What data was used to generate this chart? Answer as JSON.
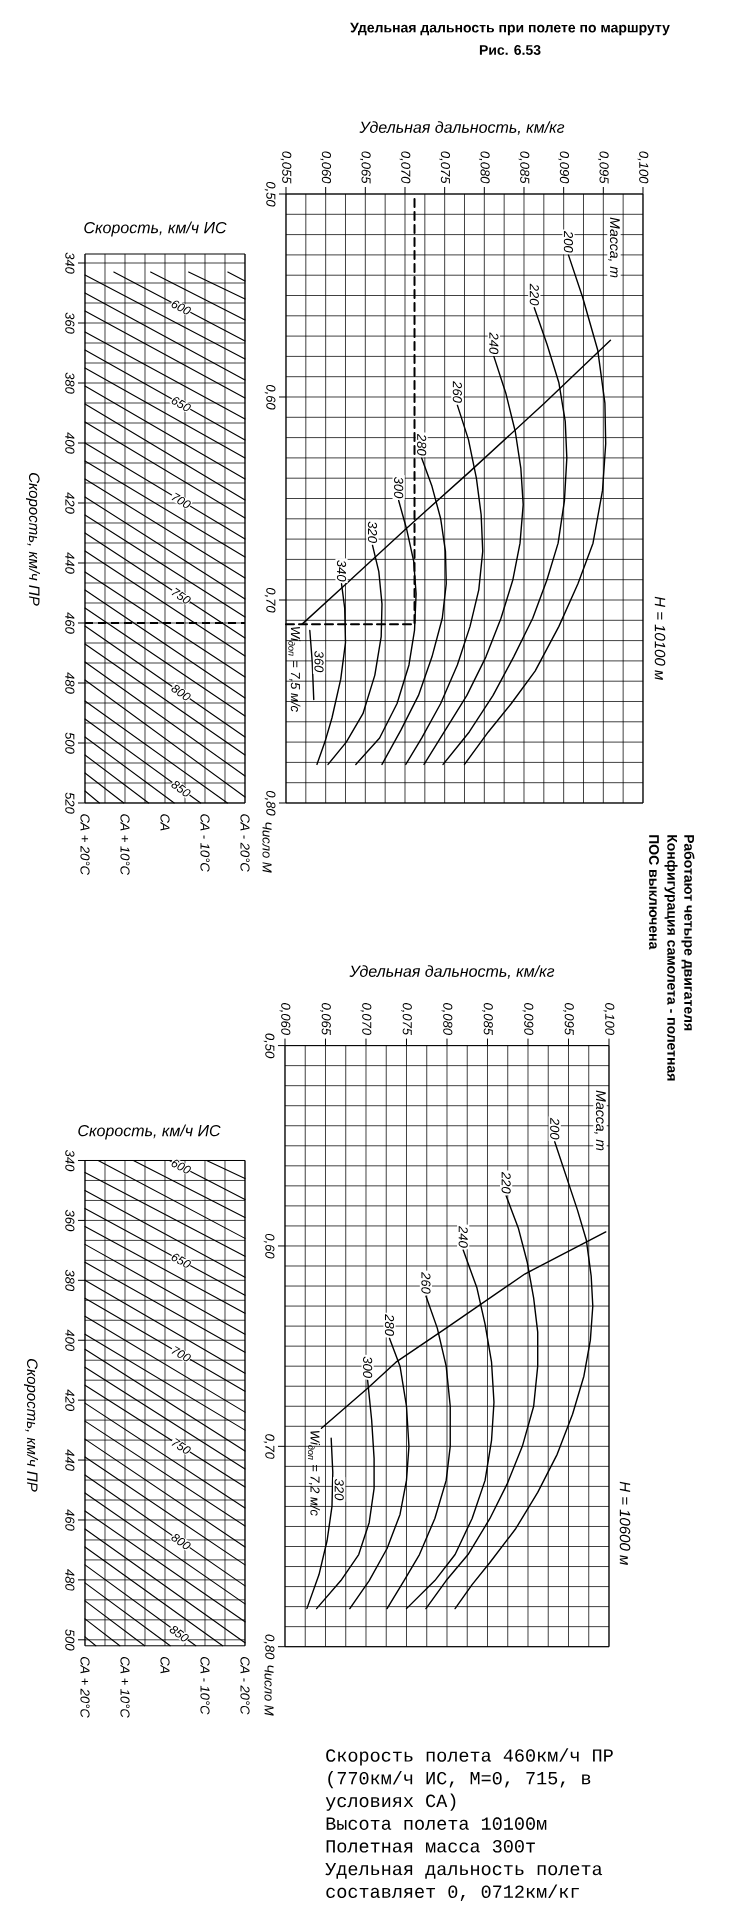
{
  "chart_data": [
    {
      "type": "line",
      "ylabel": "Скорость, км/ч ПР",
      "annotations": [
        "Скорость, км/ч ИС"
      ],
      "xlim": [
        20,
        -20
      ],
      "xticks": [
        {
          "value": 20,
          "label": "СА + 20°C"
        },
        {
          "value": 10,
          "label": "СА + 10°C"
        },
        {
          "value": 0,
          "label": "СА"
        },
        {
          "value": -10,
          "label": "СА - 10°C"
        },
        {
          "value": -20,
          "label": "СА - 20°C"
        }
      ],
      "ylim": [
        520,
        337
      ],
      "yticks": [
        340,
        360,
        380,
        400,
        420,
        440,
        460,
        480,
        500,
        520
      ],
      "grid": true,
      "ref_lines": [
        {
          "axis": "y",
          "value": 460,
          "line_style": "dashed"
        }
      ],
      "series": [
        {
          "color": "#000000",
          "x": [
            -15.7,
            -20
          ],
          "values": [
            343,
            346
          ]
        },
        {
          "color": "#000000",
          "x": [
            -5.9,
            -20
          ],
          "values": [
            343,
            352
          ]
        },
        {
          "color": "#000000",
          "x": [
            3.6,
            -20
          ],
          "values": [
            343,
            359
          ]
        },
        {
          "name": "600",
          "color": "#000000",
          "x": [
            12.8,
            -20
          ],
          "values": [
            343,
            366
          ]
        },
        {
          "color": "#000000",
          "x": [
            20,
            -20
          ],
          "values": [
            344,
            372
          ]
        },
        {
          "color": "#000000",
          "x": [
            20,
            -20
          ],
          "values": [
            350,
            379
          ]
        },
        {
          "color": "#000000",
          "x": [
            20,
            -20
          ],
          "values": [
            356,
            385
          ]
        },
        {
          "color": "#000000",
          "x": [
            20,
            -20
          ],
          "values": [
            363,
            392
          ]
        },
        {
          "name": "650",
          "color": "#000000",
          "x": [
            20,
            -20
          ],
          "values": [
            369,
            399
          ]
        },
        {
          "color": "#000000",
          "x": [
            20,
            -20
          ],
          "values": [
            375,
            405
          ]
        },
        {
          "color": "#000000",
          "x": [
            20,
            -20
          ],
          "values": [
            381,
            412
          ]
        },
        {
          "color": "#000000",
          "x": [
            20,
            -20
          ],
          "values": [
            387,
            419
          ]
        },
        {
          "color": "#000000",
          "x": [
            20,
            -20
          ],
          "values": [
            393,
            425
          ]
        },
        {
          "name": "700",
          "color": "#000000",
          "x": [
            20,
            -20
          ],
          "values": [
            400,
            432
          ]
        },
        {
          "color": "#000000",
          "x": [
            20,
            -20
          ],
          "values": [
            406,
            438
          ]
        },
        {
          "color": "#000000",
          "x": [
            20,
            -20
          ],
          "values": [
            412,
            445
          ]
        },
        {
          "color": "#000000",
          "x": [
            20,
            -20
          ],
          "values": [
            418,
            452
          ]
        },
        {
          "color": "#000000",
          "x": [
            20,
            -20
          ],
          "values": [
            424,
            458
          ]
        },
        {
          "name": "750",
          "color": "#000000",
          "x": [
            20,
            -20
          ],
          "values": [
            430,
            465
          ]
        },
        {
          "color": "#000000",
          "x": [
            20,
            -20
          ],
          "values": [
            436,
            471
          ]
        },
        {
          "color": "#000000",
          "x": [
            20,
            -20
          ],
          "values": [
            443,
            478
          ]
        },
        {
          "color": "#000000",
          "x": [
            20,
            -20
          ],
          "values": [
            449,
            485
          ]
        },
        {
          "color": "#000000",
          "x": [
            20,
            -20
          ],
          "values": [
            455,
            491
          ]
        },
        {
          "name": "800",
          "color": "#000000",
          "x": [
            20,
            -20
          ],
          "values": [
            461,
            498
          ]
        },
        {
          "color": "#000000",
          "x": [
            20,
            -20
          ],
          "values": [
            467,
            504
          ]
        },
        {
          "color": "#000000",
          "x": [
            20,
            -20
          ],
          "values": [
            473,
            511
          ]
        },
        {
          "color": "#000000",
          "x": [
            20,
            -20
          ],
          "values": [
            479,
            518
          ]
        },
        {
          "color": "#000000",
          "x": [
            20,
            -15.6
          ],
          "values": [
            486,
            520
          ]
        },
        {
          "name": "850",
          "color": "#000000",
          "x": [
            20,
            -8.9
          ],
          "values": [
            492,
            520
          ]
        },
        {
          "color": "#000000",
          "x": [
            20,
            -2.3
          ],
          "values": [
            498,
            520
          ]
        },
        {
          "color": "#000000",
          "x": [
            20,
            4.1
          ],
          "values": [
            504,
            520
          ]
        },
        {
          "color": "#000000",
          "x": [
            20,
            10.3
          ],
          "values": [
            510,
            520
          ]
        },
        {
          "color": "#000000",
          "x": [
            20,
            16.4
          ],
          "values": [
            516,
            520
          ]
        }
      ]
    },
    {
      "type": "line",
      "title": "Удельная дальность при полете по маршруту",
      "subtitle": "Рис. 6.53",
      "xlabel": "Удельная дальность, км/кг",
      "ylabel": "Число M",
      "annotations": [
        "Масса, т",
        "H = 10100 м",
        "Работают четыре двигателя",
        "Конфигурация самолета - полетная",
        "ПОС выключена"
      ],
      "xlim": [
        0.055,
        0.1
      ],
      "xticks": [
        {
          "value": 0.055,
          "label": "0,055"
        },
        {
          "value": 0.06,
          "label": "0,060"
        },
        {
          "value": 0.065,
          "label": "0,065"
        },
        {
          "value": 0.07,
          "label": "0,070"
        },
        {
          "value": 0.075,
          "label": "0,075"
        },
        {
          "value": 0.08,
          "label": "0,080"
        },
        {
          "value": 0.085,
          "label": "0,085"
        },
        {
          "value": 0.09,
          "label": "0,090"
        },
        {
          "value": 0.095,
          "label": "0,095"
        },
        {
          "value": 0.1,
          "label": "0,100"
        }
      ],
      "ylim": [
        0.8,
        0.5
      ],
      "yticks": [
        {
          "value": 0.5,
          "label": "0,50"
        },
        {
          "value": 0.6,
          "label": "0,60"
        },
        {
          "value": 0.7,
          "label": "0,70"
        },
        {
          "value": 0.8,
          "label": "0,80"
        }
      ],
      "grid": true,
      "series": [
        {
          "name": "Wi$_{доп}$ = 7,5 м/с",
          "color": "#000000",
          "x": [
            0.0959,
            0.0876,
            0.0781,
            0.0701,
            0.0626,
            0.057
          ],
          "values": [
            0.572,
            0.603,
            0.637,
            0.665,
            0.692,
            0.712
          ]
        },
        {
          "name": "200",
          "color": "#000000",
          "x": [
            0.0906,
            0.0924,
            0.0943,
            0.0952,
            0.0953,
            0.0949,
            0.0937,
            0.0918,
            0.0894,
            0.0864,
            0.0834,
            0.0805,
            0.0775
          ],
          "values": [
            0.53,
            0.551,
            0.577,
            0.603,
            0.623,
            0.646,
            0.672,
            0.692,
            0.713,
            0.735,
            0.751,
            0.765,
            0.781
          ]
        },
        {
          "name": "220",
          "color": "#000000",
          "x": [
            0.0863,
            0.0879,
            0.0894,
            0.0902,
            0.0904,
            0.0901,
            0.0893,
            0.0879,
            0.0861,
            0.0837,
            0.0811,
            0.0781,
            0.0748
          ],
          "values": [
            0.556,
            0.574,
            0.593,
            0.612,
            0.63,
            0.651,
            0.672,
            0.69,
            0.709,
            0.728,
            0.747,
            0.765,
            0.781
          ]
        },
        {
          "name": "240",
          "color": "#000000",
          "x": [
            0.0812,
            0.0827,
            0.0839,
            0.0846,
            0.0849,
            0.0845,
            0.0836,
            0.0821,
            0.0802,
            0.0778,
            0.0751,
            0.0724
          ],
          "values": [
            0.58,
            0.598,
            0.617,
            0.635,
            0.653,
            0.672,
            0.69,
            0.709,
            0.728,
            0.747,
            0.764,
            0.781
          ]
        },
        {
          "name": "260",
          "color": "#000000",
          "x": [
            0.0766,
            0.078,
            0.079,
            0.0796,
            0.0798,
            0.0793,
            0.0782,
            0.0766,
            0.0745,
            0.0721,
            0.0701
          ],
          "values": [
            0.604,
            0.621,
            0.64,
            0.658,
            0.676,
            0.695,
            0.713,
            0.732,
            0.751,
            0.768,
            0.781
          ]
        },
        {
          "name": "280",
          "color": "#000000",
          "x": [
            0.0721,
            0.0734,
            0.0745,
            0.0751,
            0.0752,
            0.0747,
            0.0734,
            0.0717,
            0.0695,
            0.0671
          ],
          "values": [
            0.63,
            0.644,
            0.66,
            0.676,
            0.692,
            0.709,
            0.728,
            0.747,
            0.764,
            0.781
          ]
        },
        {
          "name": "300",
          "color": "#000000",
          "x": [
            0.0692,
            0.0702,
            0.0711,
            0.0714,
            0.0712,
            0.0705,
            0.069,
            0.0668,
            0.0638
          ],
          "values": [
            0.651,
            0.665,
            0.681,
            0.697,
            0.715,
            0.732,
            0.751,
            0.768,
            0.781
          ]
        },
        {
          "name": "320",
          "color": "#000000",
          "x": [
            0.0659,
            0.0667,
            0.0671,
            0.067,
            0.0662,
            0.0647,
            0.0626,
            0.0603
          ],
          "values": [
            0.673,
            0.686,
            0.702,
            0.718,
            0.737,
            0.756,
            0.77,
            0.781
          ]
        },
        {
          "name": "340",
          "color": "#000000",
          "x": [
            0.062,
            0.0624,
            0.0625,
            0.0619,
            0.0608,
            0.0599,
            0.0589
          ],
          "values": [
            0.692,
            0.704,
            0.721,
            0.739,
            0.758,
            0.77,
            0.781
          ]
        },
        {
          "name": "360",
          "color": "#000000",
          "x": [
            0.058,
            0.0583,
            0.0585
          ],
          "values": [
            0.715,
            0.73,
            0.749
          ]
        },
        {
          "color": "#000000",
          "line_style": "dashed",
          "x": [
            0.055,
            0.0712,
            0.0712
          ],
          "values": [
            0.712,
            0.712,
            0.5
          ]
        }
      ]
    },
    {
      "type": "line",
      "ylabel": "Скорость, км/ч ПР",
      "annotations": [
        "Скорость, км/ч ИС"
      ],
      "xlim": [
        20,
        -20
      ],
      "xticks": [
        {
          "value": 20,
          "label": "СА + 20°C"
        },
        {
          "value": 10,
          "label": "СА + 10°C"
        },
        {
          "value": 0,
          "label": "СА"
        },
        {
          "value": -10,
          "label": "СА - 10°C"
        },
        {
          "value": -20,
          "label": "СА - 20°C"
        }
      ],
      "ylim": [
        502,
        340
      ],
      "yticks": [
        340,
        360,
        380,
        400,
        420,
        440,
        460,
        480,
        500
      ],
      "grid": true,
      "series": [
        {
          "color": "#000000",
          "x": [
            -10.4,
            -20
          ],
          "values": [
            340,
            346
          ]
        },
        {
          "name": "600",
          "color": "#000000",
          "x": [
            -1.1,
            -20
          ],
          "values": [
            340,
            353
          ]
        },
        {
          "color": "#000000",
          "x": [
            7.9,
            -20
          ],
          "values": [
            340,
            359
          ]
        },
        {
          "color": "#000000",
          "x": [
            16.7,
            -20
          ],
          "values": [
            340,
            366
          ]
        },
        {
          "color": "#000000",
          "x": [
            20,
            -20
          ],
          "values": [
            344,
            372
          ]
        },
        {
          "color": "#000000",
          "x": [
            20,
            -20
          ],
          "values": [
            350,
            379
          ]
        },
        {
          "name": "650",
          "color": "#000000",
          "x": [
            20,
            -20
          ],
          "values": [
            356,
            385
          ]
        },
        {
          "color": "#000000",
          "x": [
            20,
            -20
          ],
          "values": [
            362,
            391
          ]
        },
        {
          "color": "#000000",
          "x": [
            20,
            -20
          ],
          "values": [
            368,
            398
          ]
        },
        {
          "color": "#000000",
          "x": [
            20,
            -20
          ],
          "values": [
            374,
            404
          ]
        },
        {
          "color": "#000000",
          "x": [
            20,
            -20
          ],
          "values": [
            380,
            411
          ]
        },
        {
          "name": "700",
          "color": "#000000",
          "x": [
            20,
            -20
          ],
          "values": [
            386,
            417
          ]
        },
        {
          "color": "#000000",
          "x": [
            20,
            -20
          ],
          "values": [
            392,
            424
          ]
        },
        {
          "color": "#000000",
          "x": [
            20,
            -20
          ],
          "values": [
            398,
            430
          ]
        },
        {
          "color": "#000000",
          "x": [
            20,
            -20
          ],
          "values": [
            403,
            437
          ]
        },
        {
          "color": "#000000",
          "x": [
            20,
            -20
          ],
          "values": [
            409,
            443
          ]
        },
        {
          "name": "750",
          "color": "#000000",
          "x": [
            20,
            -20
          ],
          "values": [
            415,
            449
          ]
        },
        {
          "color": "#000000",
          "x": [
            20,
            -20
          ],
          "values": [
            421,
            456
          ]
        },
        {
          "color": "#000000",
          "x": [
            20,
            -20
          ],
          "values": [
            427,
            462
          ]
        },
        {
          "color": "#000000",
          "x": [
            20,
            -20
          ],
          "values": [
            433,
            469
          ]
        },
        {
          "color": "#000000",
          "x": [
            20,
            -20
          ],
          "values": [
            439,
            475
          ]
        },
        {
          "name": "800",
          "color": "#000000",
          "x": [
            20,
            -20
          ],
          "values": [
            445,
            482
          ]
        },
        {
          "color": "#000000",
          "x": [
            20,
            -20
          ],
          "values": [
            451,
            488
          ]
        },
        {
          "color": "#000000",
          "x": [
            20,
            -20
          ],
          "values": [
            457,
            494
          ]
        },
        {
          "color": "#000000",
          "x": [
            20,
            -20
          ],
          "values": [
            463,
            501
          ]
        },
        {
          "color": "#000000",
          "x": [
            20,
            -14.4
          ],
          "values": [
            469,
            502
          ]
        },
        {
          "name": "850",
          "color": "#000000",
          "x": [
            20,
            -7.7
          ],
          "values": [
            475,
            502
          ]
        },
        {
          "color": "#000000",
          "x": [
            20,
            -1.3
          ],
          "values": [
            481,
            502
          ]
        },
        {
          "color": "#000000",
          "x": [
            20,
            5.1
          ],
          "values": [
            487,
            502
          ]
        },
        {
          "color": "#000000",
          "x": [
            20,
            11.3
          ],
          "values": [
            493,
            502
          ]
        },
        {
          "color": "#000000",
          "x": [
            20,
            17.3
          ],
          "values": [
            499,
            502
          ]
        }
      ]
    },
    {
      "type": "line",
      "xlabel": "Удельная дальность, км/кг",
      "ylabel": "Число M",
      "annotations": [
        "Масса, т",
        "H = 10600 м",
        "Скорость полета 460км/ч ПР (770км/ч ИС, М=0, 715, в условиях СА)",
        "Высота полета 10100м",
        "Полетная масса 300т",
        "Удельная дальность полета составляет 0, 0712км/кг"
      ],
      "xlim": [
        0.06,
        0.1
      ],
      "xticks": [
        {
          "value": 0.06,
          "label": "0,060"
        },
        {
          "value": 0.065,
          "label": "0,065"
        },
        {
          "value": 0.07,
          "label": "0,070"
        },
        {
          "value": 0.075,
          "label": "0,075"
        },
        {
          "value": 0.08,
          "label": "0,080"
        },
        {
          "value": 0.085,
          "label": "0,085"
        },
        {
          "value": 0.09,
          "label": "0,090"
        },
        {
          "value": 0.095,
          "label": "0,095"
        },
        {
          "value": 0.1,
          "label": "0,100"
        }
      ],
      "ylim": [
        0.8,
        0.5
      ],
      "yticks": [
        {
          "value": 0.5,
          "label": "0,50"
        },
        {
          "value": 0.6,
          "label": "0,60"
        },
        {
          "value": 0.7,
          "label": "0,70"
        },
        {
          "value": 0.8,
          "label": "0,80"
        }
      ],
      "grid": true,
      "series": [
        {
          "name": "Wi$_{доп}$ = 7,2 м/с",
          "color": "#000000",
          "x": [
            0.0996,
            0.0896,
            0.0799,
            0.0737,
            0.0702,
            0.0645
          ],
          "values": [
            0.593,
            0.614,
            0.641,
            0.658,
            0.671,
            0.691
          ]
        },
        {
          "name": "200",
          "color": "#000000",
          "x": [
            0.0933,
            0.0947,
            0.0961,
            0.0972,
            0.0978,
            0.098,
            0.0977,
            0.0969,
            0.0955,
            0.0936,
            0.0912,
            0.0885,
            0.0853,
            0.0831,
            0.081
          ],
          "values": [
            0.548,
            0.565,
            0.582,
            0.597,
            0.615,
            0.63,
            0.647,
            0.665,
            0.684,
            0.704,
            0.723,
            0.741,
            0.758,
            0.769,
            0.781
          ]
        },
        {
          "name": "220",
          "color": "#000000",
          "x": [
            0.0873,
            0.0888,
            0.0899,
            0.0907,
            0.0912,
            0.0912,
            0.0907,
            0.0893,
            0.0874,
            0.0853,
            0.0826,
            0.0799,
            0.0774
          ],
          "values": [
            0.575,
            0.591,
            0.608,
            0.626,
            0.643,
            0.66,
            0.68,
            0.7,
            0.719,
            0.736,
            0.754,
            0.767,
            0.781
          ]
        },
        {
          "name": "240",
          "color": "#000000",
          "x": [
            0.082,
            0.0837,
            0.0847,
            0.0855,
            0.0858,
            0.0855,
            0.0847,
            0.0831,
            0.081,
            0.0785,
            0.075
          ],
          "values": [
            0.602,
            0.621,
            0.639,
            0.658,
            0.678,
            0.697,
            0.717,
            0.736,
            0.754,
            0.767,
            0.781
          ]
        },
        {
          "name": "260",
          "color": "#000000",
          "x": [
            0.0774,
            0.0788,
            0.0799,
            0.0804,
            0.0804,
            0.0799,
            0.0785,
            0.0766,
            0.0747,
            0.0726
          ],
          "values": [
            0.625,
            0.641,
            0.66,
            0.68,
            0.7,
            0.717,
            0.736,
            0.754,
            0.767,
            0.781
          ]
        },
        {
          "name": "280",
          "color": "#000000",
          "x": [
            0.0729,
            0.0742,
            0.075,
            0.0753,
            0.075,
            0.0742,
            0.0726,
            0.0704,
            0.068
          ],
          "values": [
            0.646,
            0.66,
            0.68,
            0.7,
            0.717,
            0.734,
            0.751,
            0.767,
            0.781
          ]
        },
        {
          "name": "300",
          "color": "#000000",
          "x": [
            0.0702,
            0.0707,
            0.071,
            0.071,
            0.0704,
            0.0691,
            0.0669,
            0.0639
          ],
          "values": [
            0.667,
            0.687,
            0.706,
            0.721,
            0.738,
            0.754,
            0.767,
            0.781
          ]
        },
        {
          "name": "320",
          "color": "#000000",
          "x": [
            0.0657,
            0.0659,
            0.0658,
            0.0652,
            0.0642,
            0.0627
          ],
          "values": [
            0.696,
            0.713,
            0.73,
            0.747,
            0.764,
            0.781
          ]
        }
      ]
    }
  ]
}
